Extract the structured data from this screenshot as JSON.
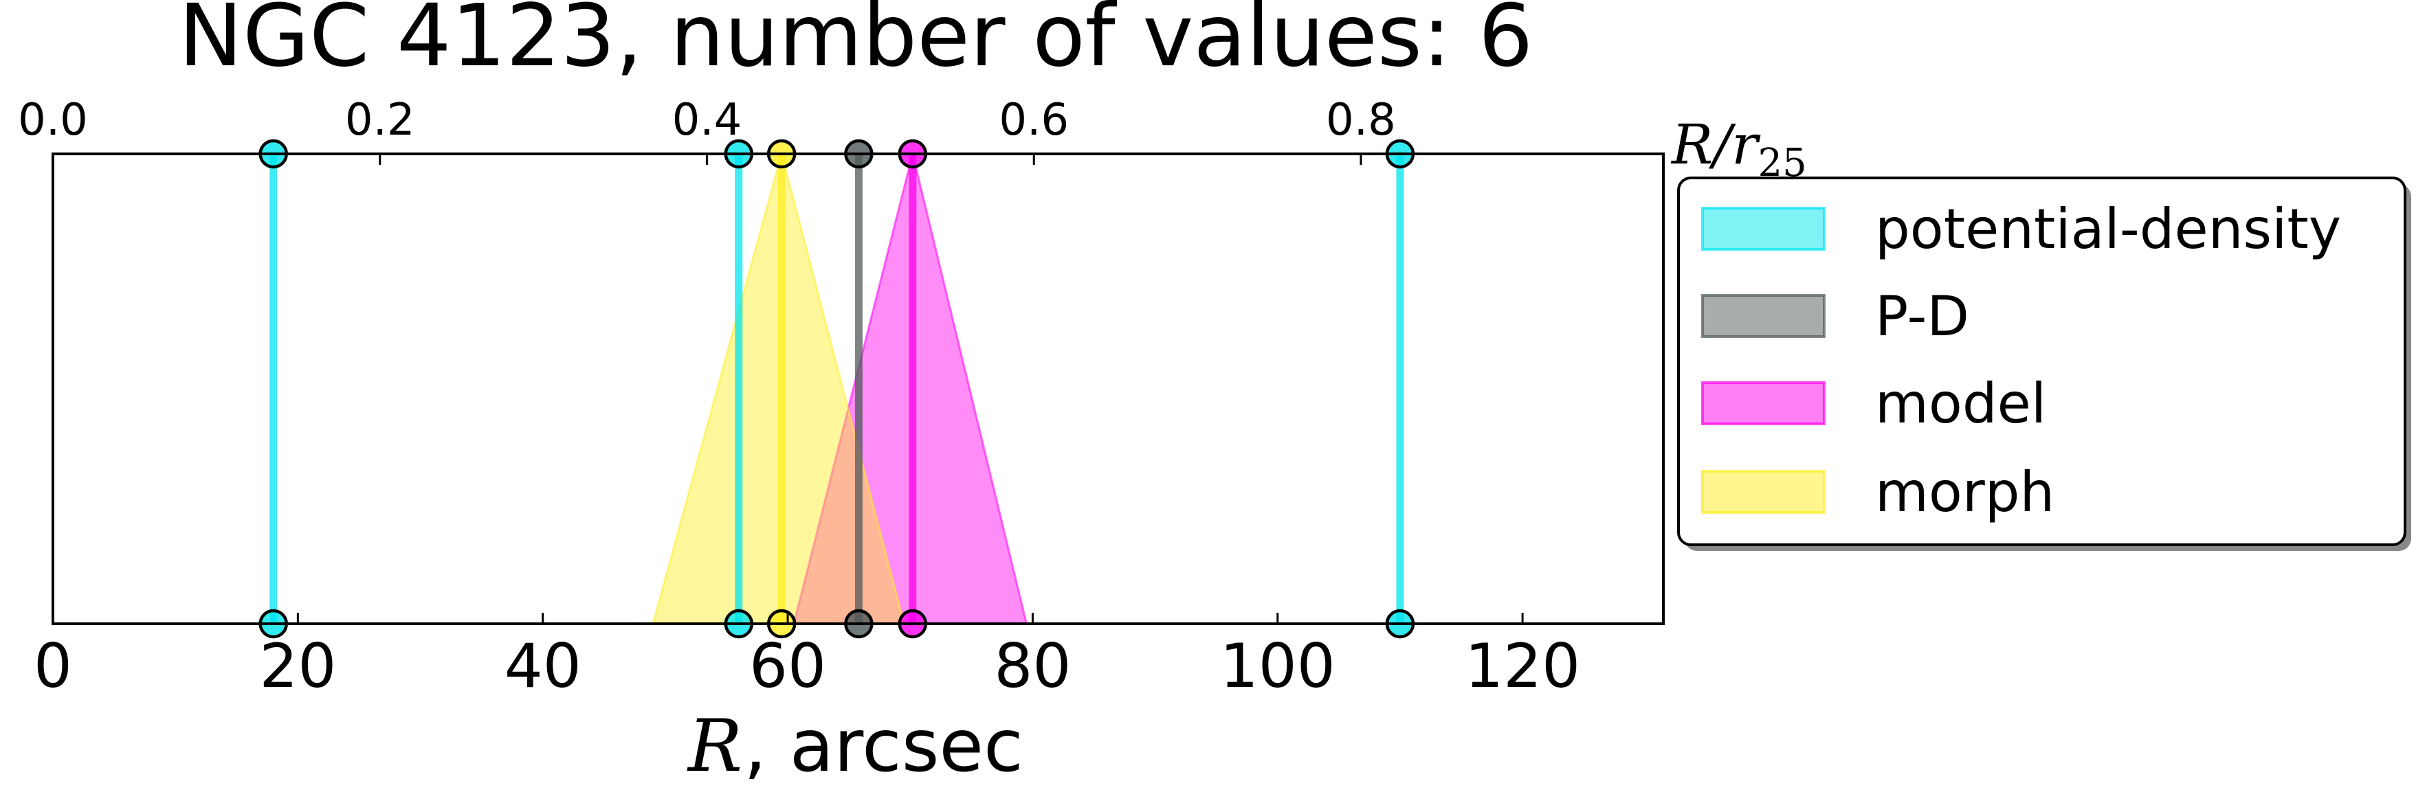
{
  "chart_data": {
    "type": "line",
    "title": "NGC 4123, number of values: 6",
    "xlabel": "R, arcsec",
    "x2label": "R/r25",
    "xlim": [
      0,
      131.5
    ],
    "x2lim": [
      0,
      0.985
    ],
    "xticks": [
      "0",
      "20",
      "40",
      "60",
      "80",
      "100",
      "120"
    ],
    "x2ticks": [
      "0.0",
      "0.2",
      "0.4",
      "0.6",
      "0.8"
    ],
    "legend_position": "right, outside axes",
    "series": [
      {
        "name": "potential-density",
        "color": "#00e5ee",
        "kind": "line",
        "x": [
          18,
          56,
          110
        ]
      },
      {
        "name": "P-D",
        "color": "#4f5a5a",
        "kind": "line",
        "x": [
          65.8
        ]
      },
      {
        "name": "model",
        "color": "#ff00ee",
        "kind": "triangle",
        "x": 70.2,
        "x_low": 60.5,
        "x_high": 79.5
      },
      {
        "name": "morph",
        "color": "#ffee22",
        "kind": "triangle",
        "x": 59.5,
        "x_low": 49.0,
        "x_high": 69.5
      }
    ]
  }
}
